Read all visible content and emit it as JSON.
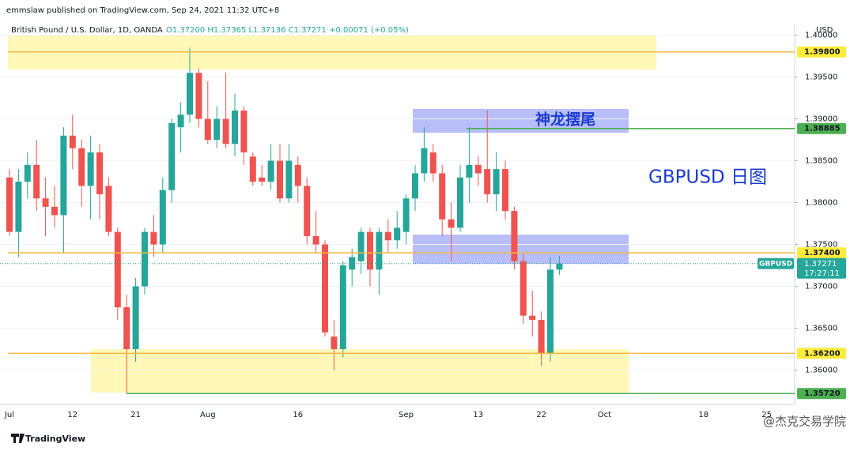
{
  "chart_data": {
    "type": "candlestick",
    "publisher": "emmslaw published on TradingView.com, Sep 24, 2021 11:32 UTC+8",
    "title": "British Pound / U.S. Dollar, 1D, OANDA",
    "ohlc_legend": "O1.37200 H1.37365 L1.37136 C1.37271 +0.00071 (+0.05%)",
    "currency": "USD",
    "annotations": [
      "神龙摆尾",
      "GBPUSD 日图"
    ],
    "brand": "TradingView",
    "watermark": "@杰克交易学院",
    "up_color": "#26a69a",
    "down_color": "#ef5350",
    "categories": [
      "Jul",
      null,
      null,
      null,
      null,
      null,
      null,
      "12",
      null,
      null,
      null,
      null,
      null,
      null,
      "21",
      null,
      null,
      null,
      null,
      null,
      null,
      null,
      "Aug",
      null,
      null,
      null,
      null,
      null,
      null,
      null,
      null,
      null,
      "16",
      null,
      null,
      null,
      null,
      null,
      null,
      null,
      null,
      null,
      null,
      null,
      "Sep",
      null,
      null,
      null,
      null,
      null,
      null,
      null,
      "13",
      null,
      null,
      null,
      null,
      null,
      null,
      "22",
      null,
      null,
      null,
      null,
      null,
      null,
      "Oct",
      null,
      null,
      null,
      null,
      null,
      null,
      null,
      null,
      null,
      null,
      "18",
      null,
      null,
      null,
      null,
      null,
      null,
      "25"
    ],
    "open": [
      1.383,
      1.3765,
      1.3825,
      1.3845,
      1.3805,
      1.3795,
      1.3785,
      1.388,
      1.3865,
      1.382,
      1.386,
      1.382,
      1.3765,
      1.3675,
      1.3625,
      1.37,
      1.3765,
      1.375,
      1.3815,
      1.389,
      1.3905,
      1.3955,
      1.39,
      1.3875,
      1.39,
      1.387,
      1.391,
      1.3855,
      1.383,
      1.3825,
      1.385,
      1.3805,
      1.3845,
      1.382,
      1.376,
      1.375,
      1.364,
      1.3625,
      1.372,
      1.373,
      1.3765,
      1.372,
      1.3765,
      1.3755,
      1.3765,
      1.3805,
      1.3835,
      1.386,
      1.3835,
      1.378,
      1.377,
      1.383,
      1.3845,
      1.384,
      1.381,
      1.384,
      1.379,
      1.373,
      1.3665,
      1.366,
      1.362,
      1.372,
      null,
      null,
      null,
      null,
      null,
      null,
      null,
      null,
      null,
      null,
      null,
      null,
      null,
      null,
      null,
      null,
      null,
      null,
      null,
      null,
      null,
      null,
      null
    ],
    "high": [
      1.384,
      1.384,
      1.386,
      1.3875,
      1.383,
      1.382,
      1.389,
      1.3905,
      1.3875,
      1.388,
      1.387,
      1.383,
      1.377,
      1.369,
      1.371,
      1.377,
      1.3785,
      1.383,
      1.39,
      1.392,
      1.3985,
      1.396,
      1.3945,
      1.3915,
      1.3955,
      1.393,
      1.3915,
      1.386,
      1.3845,
      1.387,
      1.387,
      1.387,
      1.3855,
      1.383,
      1.379,
      1.3755,
      1.366,
      1.373,
      1.3745,
      1.377,
      1.377,
      1.377,
      1.378,
      1.379,
      1.381,
      1.3845,
      1.389,
      1.387,
      1.3845,
      1.38,
      1.3845,
      1.389,
      1.3855,
      1.391,
      1.386,
      1.385,
      1.3795,
      1.374,
      1.3695,
      1.367,
      1.3735,
      1.37365,
      null,
      null,
      null,
      null,
      null,
      null,
      null,
      null,
      null,
      null,
      null,
      null,
      null,
      null,
      null,
      null,
      null,
      null,
      null,
      null,
      null,
      null,
      null
    ],
    "low": [
      1.376,
      1.3735,
      1.3805,
      1.379,
      1.376,
      1.377,
      1.374,
      1.384,
      1.3795,
      1.378,
      1.378,
      1.376,
      1.366,
      1.3572,
      1.361,
      1.369,
      1.3735,
      1.374,
      1.38,
      1.386,
      1.3895,
      1.389,
      1.387,
      1.3865,
      1.3865,
      1.3855,
      1.3845,
      1.382,
      1.382,
      1.3815,
      1.38,
      1.38,
      1.38,
      1.375,
      1.374,
      1.364,
      1.36,
      1.3615,
      1.37,
      1.3715,
      1.37,
      1.369,
      1.374,
      1.3745,
      1.375,
      1.379,
      1.3825,
      1.3825,
      1.376,
      1.373,
      1.3765,
      1.38,
      1.382,
      1.38,
      1.379,
      1.378,
      1.372,
      1.3655,
      1.364,
      1.3605,
      1.361,
      1.37136,
      null,
      null,
      null,
      null,
      null,
      null,
      null,
      null,
      null,
      null,
      null,
      null,
      null,
      null,
      null,
      null,
      null,
      null,
      null,
      null,
      null,
      null,
      null
    ],
    "close": [
      1.3765,
      1.3825,
      1.3845,
      1.3805,
      1.3795,
      1.3785,
      1.388,
      1.3865,
      1.382,
      1.386,
      1.381,
      1.3765,
      1.3675,
      1.3625,
      1.37,
      1.3765,
      1.375,
      1.3815,
      1.3895,
      1.3905,
      1.3955,
      1.39,
      1.3875,
      1.39,
      1.387,
      1.391,
      1.386,
      1.3825,
      1.3825,
      1.385,
      1.3805,
      1.385,
      1.382,
      1.376,
      1.375,
      1.3645,
      1.3625,
      1.3725,
      1.3735,
      1.3765,
      1.372,
      1.3765,
      1.3755,
      1.377,
      1.3805,
      1.3835,
      1.3865,
      1.3835,
      1.378,
      1.377,
      1.383,
      1.3845,
      1.3835,
      1.381,
      1.384,
      1.379,
      1.373,
      1.3665,
      1.366,
      1.362,
      1.372,
      1.37271,
      null,
      null,
      null,
      null,
      null,
      null,
      null,
      null,
      null,
      null,
      null,
      null,
      null,
      null,
      null,
      null,
      null,
      null,
      null,
      null,
      null,
      null,
      null
    ],
    "ylim": [
      1.3559,
      1.40137
    ],
    "yticks": [
      {
        "value": 1.36,
        "label": "1.36000"
      },
      {
        "value": 1.365,
        "label": "1.36500"
      },
      {
        "value": 1.37,
        "label": "1.37000"
      },
      {
        "value": 1.375,
        "label": "1.37500"
      },
      {
        "value": 1.38,
        "label": "1.38000"
      },
      {
        "value": 1.385,
        "label": "1.38500"
      },
      {
        "value": 1.39,
        "label": "1.39000"
      },
      {
        "value": 1.395,
        "label": "1.39500"
      },
      {
        "value": 1.4,
        "label": "1.40000"
      }
    ],
    "levels": [
      {
        "value": 1.398,
        "label": "1.39800",
        "color": "#f5b942",
        "label_bg": "#ffeb3b"
      },
      {
        "value": 1.38885,
        "label": "1.38885",
        "color": "#4caf50",
        "label_bg": "#4caf50"
      },
      {
        "value": 1.374,
        "label": "1.37400",
        "color": "#f5b942",
        "label_bg": "#ffeb3b"
      },
      {
        "value": 1.362,
        "label": "1.36200",
        "color": "#f5b942",
        "label_bg": "#ffeb3b"
      },
      {
        "value": 1.3572,
        "label": "1.35720",
        "color": "#4caf50",
        "label_bg": "#4caf50"
      }
    ],
    "last_price": {
      "symbol": "GBPUSD",
      "value": 1.37271,
      "label": "1.37271",
      "countdown": "17:27:11"
    }
  }
}
